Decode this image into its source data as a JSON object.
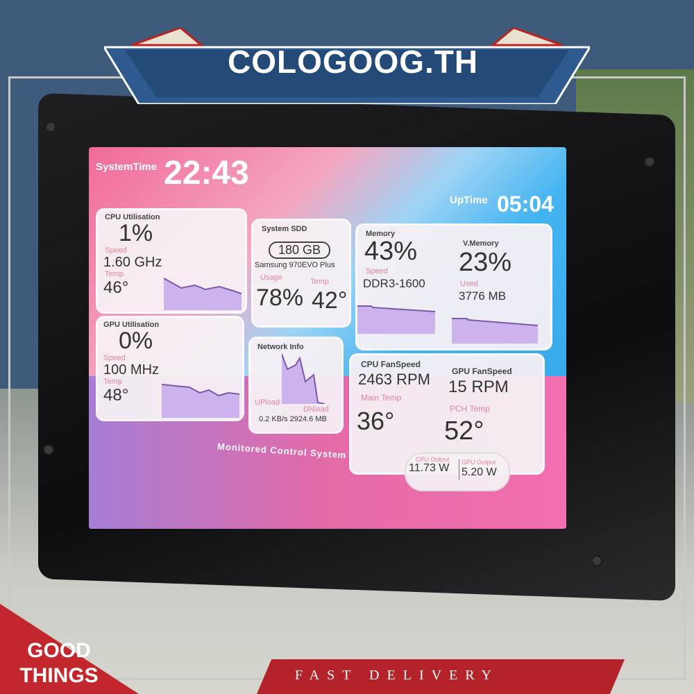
{
  "banner": {
    "brand": "COLOGOOG.TH",
    "badge": "GOOD THINGS",
    "footer": "FAST DELIVERY"
  },
  "screen": {
    "system_time": {
      "label": "SystemTime",
      "value": "22:43"
    },
    "uptime": {
      "label": "UpTime",
      "value": "05:04"
    },
    "cpu": {
      "title": "CPU Utilisation",
      "usage": "1%",
      "speed_label": "Speed",
      "speed": "1.60 GHz",
      "temp_label": "Temp",
      "temp": "46°"
    },
    "gpu": {
      "title": "GPU Utilisation",
      "usage": "0%",
      "speed_label": "Speed",
      "speed": "100 MHz",
      "temp_label": "Temp",
      "temp": "48°"
    },
    "ssd": {
      "title": "System SDD",
      "capacity": "180 GB",
      "model": "Samsung 970EVO Plus",
      "usage_label": "Usage",
      "usage": "78%",
      "temp_label": "Temp",
      "temp": "42°"
    },
    "network": {
      "title": "Network Info",
      "upload_label": "UPload",
      "download_label": "DNload",
      "upload": "0.2 KB/s",
      "download": "2924.6 MB"
    },
    "memory": {
      "title": "Memory",
      "usage": "43%",
      "speed_label": "Speed",
      "speed": "DDR3-1600"
    },
    "vmemory": {
      "title": "V.Memory",
      "usage": "23%",
      "used_label": "Used",
      "used": "3776 MB"
    },
    "fans": {
      "cpu_label": "CPU FanSpeed",
      "cpu": "2463 RPM",
      "gpu_label": "GPU FanSpeed",
      "gpu": "15 RPM",
      "main_temp_label": "Main Temp",
      "main_temp": "36°",
      "pch_temp_label": "PCH Temp",
      "pch_temp": "52°"
    },
    "power": {
      "cpu_label": "CPU Output",
      "cpu": "11.73 W",
      "gpu_label": "GPU Output",
      "gpu": "5.20 W"
    },
    "footer": "Monitored Control System"
  },
  "colors": {
    "graph_fill": "#cdb3ee",
    "graph_line": "#7a5aa8",
    "label_pink": "#e7849a",
    "banner_blue": "#2f5a8f",
    "badge_red": "#c1272d"
  }
}
